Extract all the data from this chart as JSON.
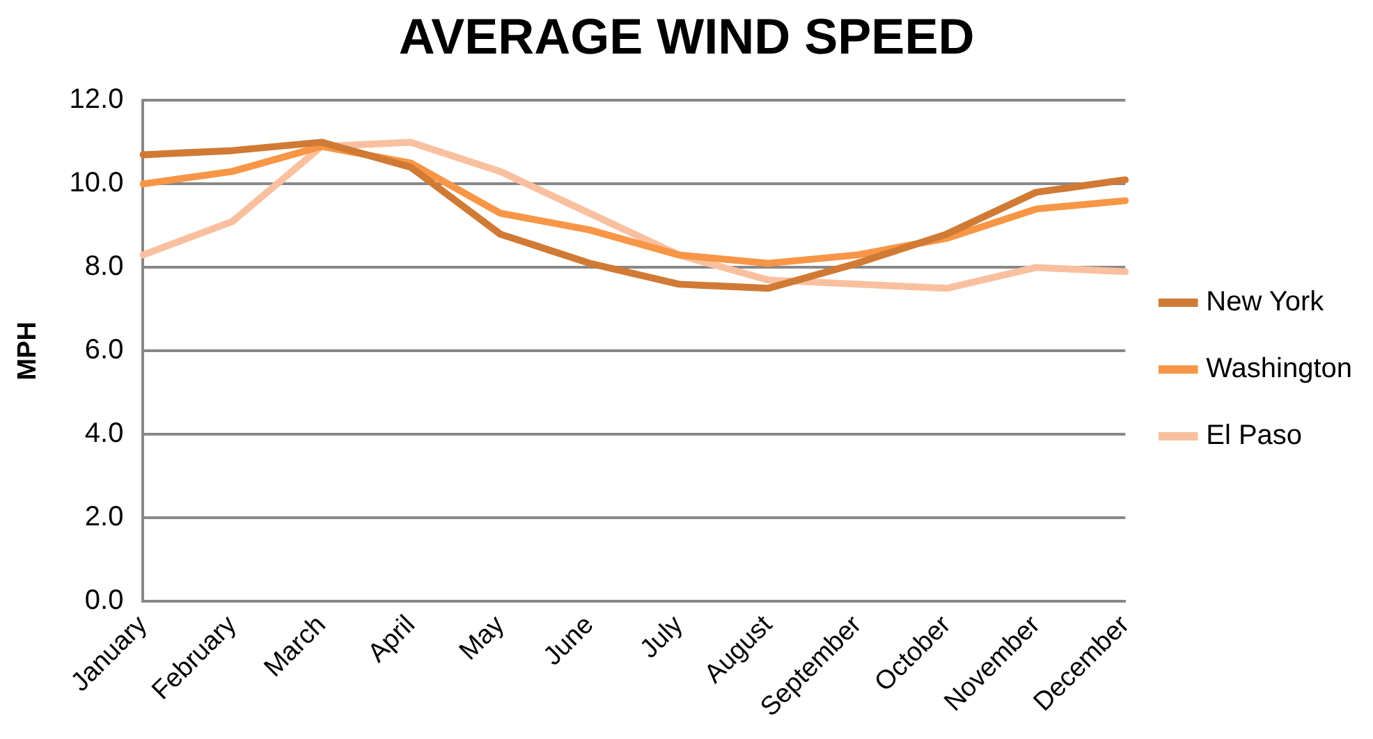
{
  "chart_data": {
    "type": "line",
    "title": "AVERAGE WIND SPEED",
    "ylabel": "MPH",
    "categories": [
      "January",
      "February",
      "March",
      "April",
      "May",
      "June",
      "July",
      "August",
      "September",
      "October",
      "November",
      "December"
    ],
    "series": [
      {
        "name": "New York",
        "color": "#d07a35",
        "values": [
          10.7,
          10.8,
          11.0,
          10.4,
          8.8,
          8.1,
          7.6,
          7.5,
          8.1,
          8.8,
          9.8,
          10.1
        ]
      },
      {
        "name": "Washington",
        "color": "#f79646",
        "values": [
          10.0,
          10.3,
          10.9,
          10.5,
          9.3,
          8.9,
          8.3,
          8.1,
          8.3,
          8.7,
          9.4,
          9.6
        ]
      },
      {
        "name": "El Paso",
        "color": "#f9c0a0",
        "values": [
          8.3,
          9.1,
          10.9,
          11.0,
          10.3,
          9.3,
          8.3,
          7.7,
          7.6,
          7.5,
          8.0,
          7.9
        ]
      }
    ],
    "ylim": [
      0,
      12
    ],
    "yticks": [
      {
        "value": 0,
        "label": "0.0"
      },
      {
        "value": 2,
        "label": "2.0"
      },
      {
        "value": 4,
        "label": "4.0"
      },
      {
        "value": 6,
        "label": "6.0"
      },
      {
        "value": 8,
        "label": "8.0"
      },
      {
        "value": 10,
        "label": "10.0"
      },
      {
        "value": 12,
        "label": "12.0"
      }
    ],
    "grid": "y",
    "legend": "right",
    "marker": "none"
  }
}
